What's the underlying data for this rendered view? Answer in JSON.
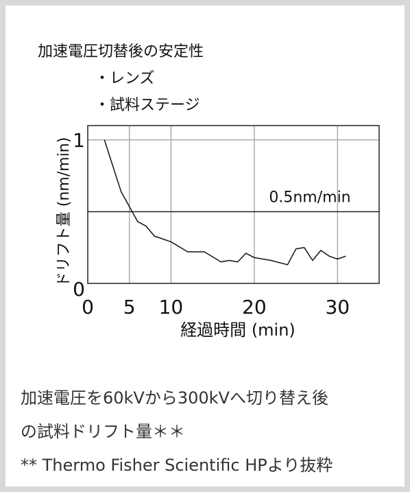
{
  "chart_data": {
    "type": "line",
    "title": "加速電圧切替後の安定性",
    "subtitle_lines": [
      "・レンズ",
      "・試料ステージ"
    ],
    "xlabel": "経過時間 (min)",
    "ylabel": "ドリフト量 (nm/min)",
    "xlim": [
      0,
      35
    ],
    "ylim": [
      0,
      1.1
    ],
    "x_ticks": [
      0,
      5,
      10,
      20,
      30
    ],
    "x_tick_labels": [
      "0",
      "5",
      "10",
      "20",
      "30"
    ],
    "y_ticks": [
      0,
      1
    ],
    "y_tick_labels": [
      "0",
      "1"
    ],
    "grid": true,
    "reference_line": {
      "y": 0.5,
      "label": "0.5nm/min"
    },
    "series": [
      {
        "x": [
          2,
          4,
          6,
          7,
          8,
          10,
          12,
          14,
          16,
          17,
          18,
          19,
          20,
          22,
          24,
          25,
          26,
          27,
          28,
          29,
          30,
          31
        ],
        "y": [
          1.0,
          0.64,
          0.43,
          0.4,
          0.33,
          0.29,
          0.22,
          0.22,
          0.15,
          0.16,
          0.15,
          0.21,
          0.18,
          0.16,
          0.13,
          0.24,
          0.25,
          0.16,
          0.23,
          0.19,
          0.17,
          0.19
        ]
      }
    ]
  },
  "caption": {
    "line1": "加速電圧を60kVから300kVへ切り替え後",
    "line2": "の試料ドリフト量＊＊",
    "line3": "** Thermo Fisher Scientific HPより抜粋"
  },
  "colors": {
    "background": "#d9d9d9",
    "card": "#ffffff",
    "grid": "#aaaaaa",
    "line": "#111111",
    "caption_text": "#333333"
  }
}
